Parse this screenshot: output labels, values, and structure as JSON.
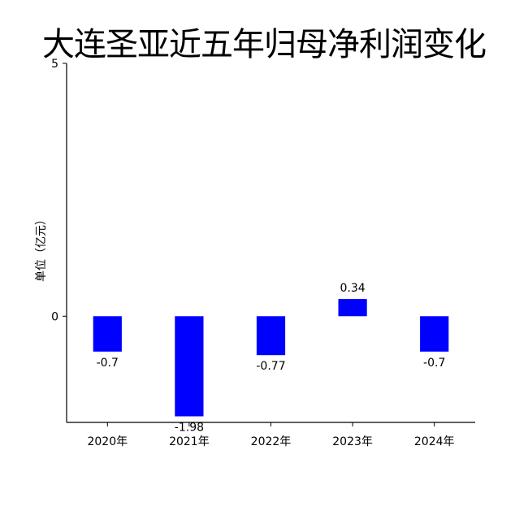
{
  "chart_data": {
    "type": "bar",
    "title": "大连圣亚近五年归母净利润变化",
    "ylabel": "单位（亿元）",
    "xlabel": "",
    "categories": [
      "2020年",
      "2021年",
      "2022年",
      "2023年",
      "2024年"
    ],
    "values": [
      -0.7,
      -1.98,
      -0.77,
      0.34,
      -0.7
    ],
    "data_labels": [
      "-0.7",
      "-1.98",
      "-0.77",
      "0.34",
      "-0.7"
    ],
    "ylim": [
      -2.1,
      5
    ],
    "yticks": [
      0,
      5
    ],
    "grid": false,
    "legend": "none",
    "bar_color": "#0000ff"
  }
}
